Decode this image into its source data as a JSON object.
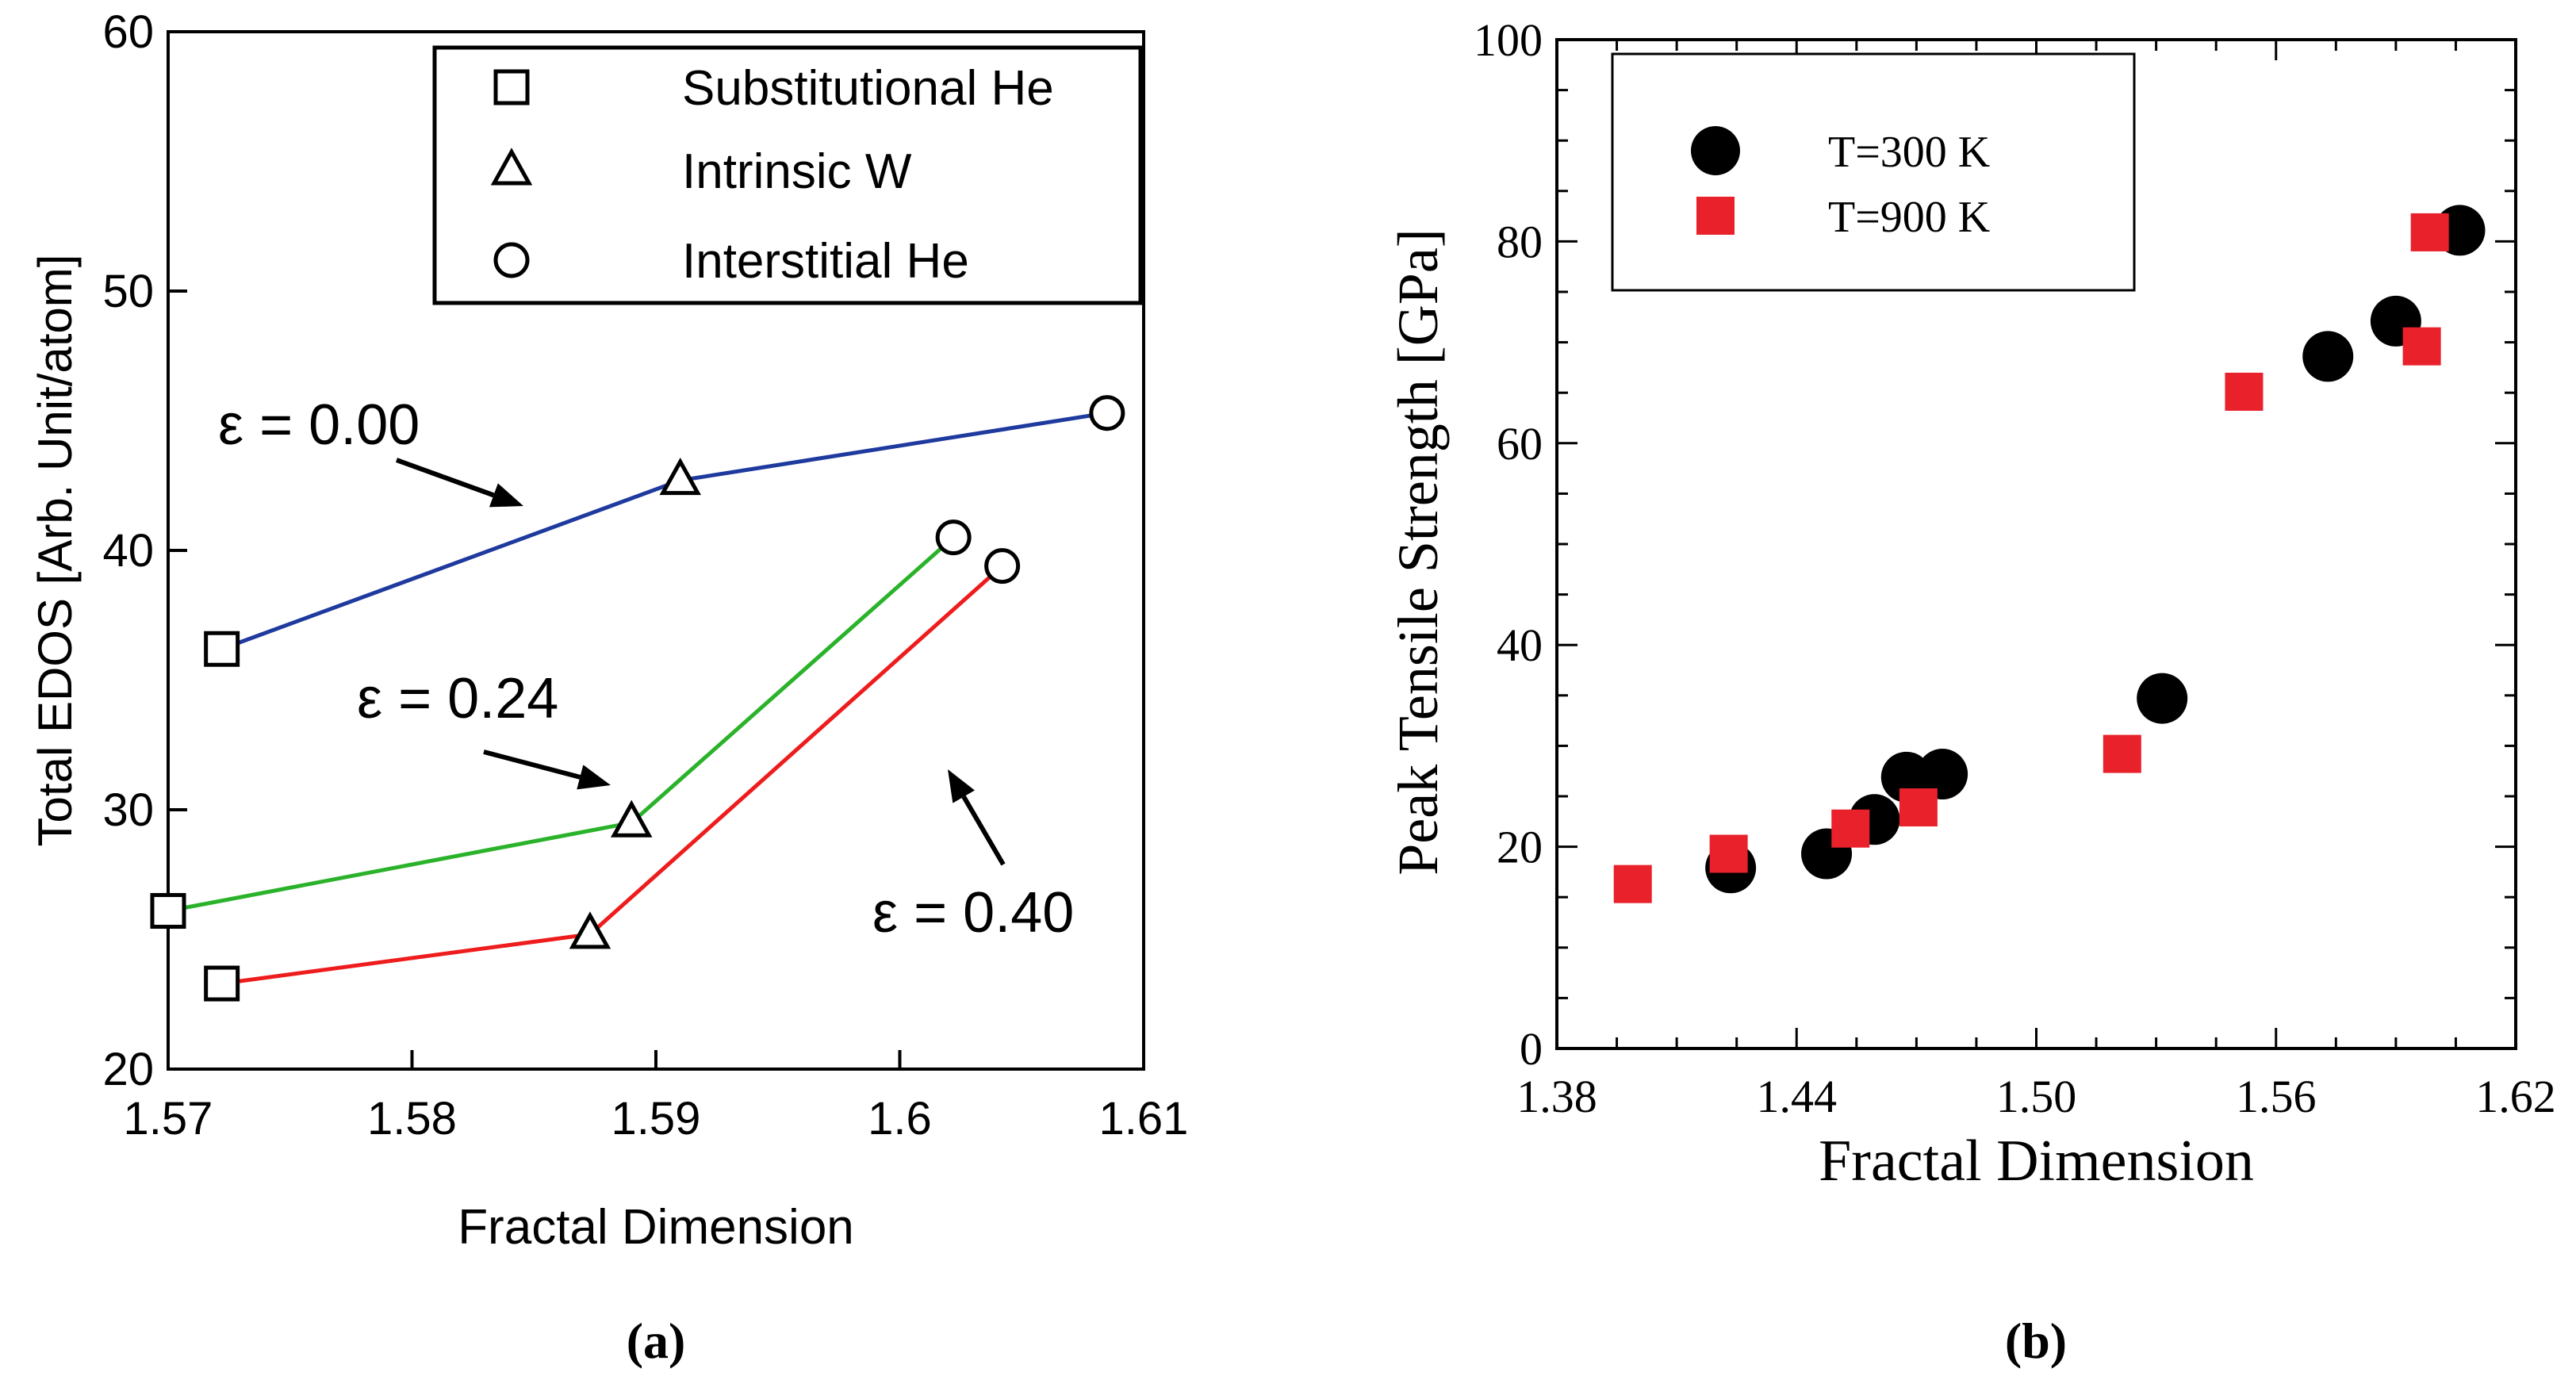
{
  "chart_data": [
    {
      "panel": "a",
      "type": "line",
      "caption": "(a)",
      "xlabel": "Fractal Dimension",
      "ylabel": "Total EDOS [Arb. Unit/atom]",
      "xlim": [
        1.57,
        1.61
      ],
      "ylim": [
        20,
        60
      ],
      "xticks": [
        1.57,
        1.58,
        1.59,
        1.6,
        1.61
      ],
      "xtick_labels": [
        "1.57",
        "1.58",
        "1.59",
        "1.6",
        "1.61"
      ],
      "yticks": [
        20,
        30,
        40,
        50,
        60
      ],
      "ytick_labels": [
        "20",
        "30",
        "40",
        "50",
        "60"
      ],
      "grid": false,
      "legend_position": "top-right",
      "legend": [
        {
          "marker": "square",
          "label": "Substitutional He"
        },
        {
          "marker": "triangle",
          "label": "Intrinsic W"
        },
        {
          "marker": "circle",
          "label": "Interstitial He"
        }
      ],
      "marker_order": [
        "square",
        "triangle",
        "circle"
      ],
      "series": [
        {
          "name": "ε = 0.00",
          "color": "#1f3a9e",
          "x": [
            1.5722,
            1.591,
            1.6085
          ],
          "y": [
            36.2,
            42.7,
            45.3
          ]
        },
        {
          "name": "ε = 0.24",
          "color": "#2ab32a",
          "x": [
            1.57,
            1.589,
            1.6022
          ],
          "y": [
            26.1,
            29.5,
            40.5
          ]
        },
        {
          "name": "ε = 0.40",
          "color": "#ee1c1c",
          "x": [
            1.5722,
            1.5873,
            1.6042
          ],
          "y": [
            23.3,
            25.2,
            39.4
          ]
        }
      ],
      "annotations": [
        {
          "text": "ε = 0.00",
          "series": 0
        },
        {
          "text": "ε = 0.24",
          "series": 1
        },
        {
          "text": "ε = 0.40",
          "series": 2
        }
      ]
    },
    {
      "panel": "b",
      "type": "scatter",
      "caption": "(b)",
      "xlabel": "Fractal Dimension",
      "ylabel": "Peak Tensile Strength [GPa]",
      "xlim": [
        1.38,
        1.62
      ],
      "ylim": [
        0,
        100
      ],
      "xticks": [
        1.38,
        1.44,
        1.5,
        1.56,
        1.62
      ],
      "xtick_labels": [
        "1.38",
        "1.44",
        "1.50",
        "1.56",
        "1.62"
      ],
      "yticks": [
        0,
        20,
        40,
        60,
        80,
        100
      ],
      "ytick_labels": [
        "0",
        "20",
        "40",
        "60",
        "80",
        "100"
      ],
      "grid": false,
      "legend_position": "top-left",
      "series": [
        {
          "name": "T=300 K",
          "marker": "circle",
          "color": "#000000",
          "x": [
            1.4235,
            1.4475,
            1.4595,
            1.4675,
            1.4765,
            1.5315,
            1.573,
            1.59,
            1.606
          ],
          "y": [
            17.9,
            19.3,
            22.7,
            26.9,
            27.2,
            34.7,
            68.6,
            72.1,
            81.1
          ]
        },
        {
          "name": "T=900 K",
          "marker": "square",
          "color": "#e8212b",
          "x": [
            1.399,
            1.423,
            1.4535,
            1.4705,
            1.5215,
            1.552,
            1.5965,
            1.5985
          ],
          "y": [
            16.3,
            19.3,
            21.8,
            23.9,
            29.2,
            65.1,
            69.6,
            80.9
          ]
        }
      ]
    }
  ]
}
